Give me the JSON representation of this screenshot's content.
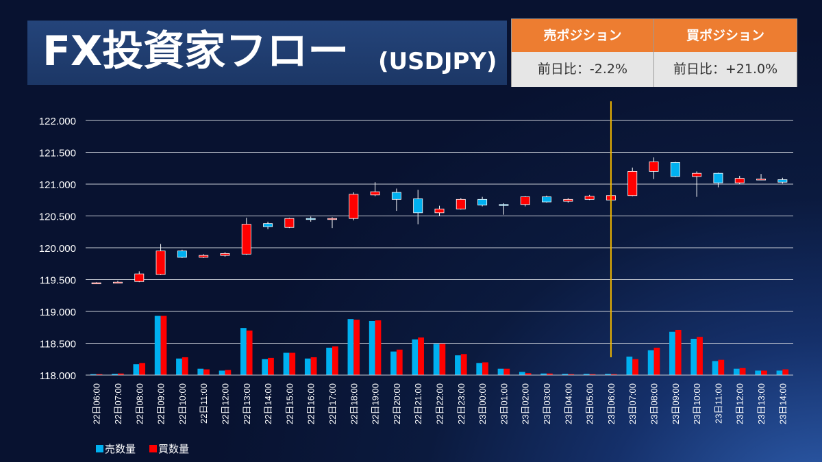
{
  "header": {
    "title": "FX投資家フロー",
    "subtitle": "(USDJPY)"
  },
  "positions": {
    "sell": {
      "label": "売ポジション",
      "change": "前日比：-2.2%"
    },
    "buy": {
      "label": "買ポジション",
      "change": "前日比：+21.0%"
    }
  },
  "colors": {
    "sell": "#00b0f0",
    "buy": "#ff0000",
    "header_orange": "#ed7d31",
    "marker": "#f2b800"
  },
  "chart_data": {
    "type": "candlestick+bar",
    "ylim": [
      118.0,
      122.0
    ],
    "yticks": [
      "118.000",
      "118.500",
      "119.000",
      "119.500",
      "120.000",
      "120.500",
      "121.000",
      "121.500",
      "122.000"
    ],
    "grid": true,
    "legend_placement": "bottom-left",
    "legend": [
      {
        "name": "売数量",
        "color": "#00b0f0"
      },
      {
        "name": "買数量",
        "color": "#ff0000"
      }
    ],
    "marker_category": "23日06:00",
    "categories": [
      "22日06:00",
      "22日07:00",
      "22日08:00",
      "22日09:00",
      "22日10:00",
      "22日11:00",
      "22日12:00",
      "22日13:00",
      "22日14:00",
      "22日15:00",
      "22日16:00",
      "22日17:00",
      "22日18:00",
      "22日19:00",
      "22日20:00",
      "22日21:00",
      "22日22:00",
      "22日23:00",
      "23日00:00",
      "23日01:00",
      "23日02:00",
      "23日03:00",
      "23日04:00",
      "23日05:00",
      "23日06:00",
      "23日07:00",
      "23日08:00",
      "23日09:00",
      "23日10:00",
      "23日11:00",
      "23日12:00",
      "23日13:00",
      "23日14:00"
    ],
    "candles": [
      {
        "open": 119.44,
        "high": 119.46,
        "low": 119.43,
        "close": 119.45
      },
      {
        "open": 119.45,
        "high": 119.48,
        "low": 119.44,
        "close": 119.46
      },
      {
        "open": 119.47,
        "high": 119.63,
        "low": 119.46,
        "close": 119.59
      },
      {
        "open": 119.58,
        "high": 120.06,
        "low": 119.57,
        "close": 119.95
      },
      {
        "open": 119.95,
        "high": 119.97,
        "low": 119.84,
        "close": 119.85
      },
      {
        "open": 119.85,
        "high": 119.9,
        "low": 119.84,
        "close": 119.88
      },
      {
        "open": 119.88,
        "high": 119.93,
        "low": 119.86,
        "close": 119.91
      },
      {
        "open": 119.9,
        "high": 120.47,
        "low": 119.89,
        "close": 120.37
      },
      {
        "open": 120.38,
        "high": 120.41,
        "low": 120.29,
        "close": 120.33
      },
      {
        "open": 120.32,
        "high": 120.47,
        "low": 120.31,
        "close": 120.46
      },
      {
        "open": 120.46,
        "high": 120.49,
        "low": 120.41,
        "close": 120.45
      },
      {
        "open": 120.45,
        "high": 120.48,
        "low": 120.31,
        "close": 120.46
      },
      {
        "open": 120.46,
        "high": 120.87,
        "low": 120.43,
        "close": 120.84
      },
      {
        "open": 120.83,
        "high": 121.03,
        "low": 120.81,
        "close": 120.88
      },
      {
        "open": 120.87,
        "high": 120.93,
        "low": 120.58,
        "close": 120.76
      },
      {
        "open": 120.77,
        "high": 120.91,
        "low": 120.37,
        "close": 120.55
      },
      {
        "open": 120.55,
        "high": 120.66,
        "low": 120.5,
        "close": 120.61
      },
      {
        "open": 120.61,
        "high": 120.78,
        "low": 120.6,
        "close": 120.76
      },
      {
        "open": 120.76,
        "high": 120.8,
        "low": 120.65,
        "close": 120.67
      },
      {
        "open": 120.68,
        "high": 120.7,
        "low": 120.52,
        "close": 120.67
      },
      {
        "open": 120.68,
        "high": 120.81,
        "low": 120.65,
        "close": 120.8
      },
      {
        "open": 120.8,
        "high": 120.82,
        "low": 120.71,
        "close": 120.72
      },
      {
        "open": 120.73,
        "high": 120.78,
        "low": 120.71,
        "close": 120.76
      },
      {
        "open": 120.76,
        "high": 120.83,
        "low": 120.75,
        "close": 120.81
      },
      {
        "open": 120.75,
        "high": 120.84,
        "low": 120.74,
        "close": 120.82
      },
      {
        "open": 120.82,
        "high": 121.26,
        "low": 120.81,
        "close": 121.2
      },
      {
        "open": 121.2,
        "high": 121.42,
        "low": 121.08,
        "close": 121.35
      },
      {
        "open": 121.34,
        "high": 121.35,
        "low": 121.11,
        "close": 121.12
      },
      {
        "open": 121.12,
        "high": 121.2,
        "low": 120.8,
        "close": 121.17
      },
      {
        "open": 121.17,
        "high": 121.18,
        "low": 120.95,
        "close": 121.02
      },
      {
        "open": 121.02,
        "high": 121.13,
        "low": 121.0,
        "close": 121.09
      },
      {
        "open": 121.08,
        "high": 121.16,
        "low": 121.06,
        "close": 121.08
      },
      {
        "open": 121.07,
        "high": 121.1,
        "low": 121.01,
        "close": 121.03
      }
    ],
    "series": [
      {
        "name": "売数量",
        "values": [
          0.015,
          0.02,
          0.17,
          0.93,
          0.26,
          0.1,
          0.07,
          0.74,
          0.25,
          0.35,
          0.26,
          0.43,
          0.88,
          0.85,
          0.37,
          0.56,
          0.49,
          0.31,
          0.19,
          0.1,
          0.05,
          0.025,
          0.02,
          0.02,
          0.02,
          0.29,
          0.39,
          0.68,
          0.57,
          0.22,
          0.1,
          0.07,
          0.07
        ]
      },
      {
        "name": "買数量",
        "values": [
          0.015,
          0.025,
          0.19,
          0.93,
          0.28,
          0.09,
          0.08,
          0.7,
          0.27,
          0.35,
          0.28,
          0.45,
          0.87,
          0.86,
          0.4,
          0.59,
          0.49,
          0.33,
          0.2,
          0.1,
          0.03,
          0.025,
          0.015,
          0.015,
          0.015,
          0.25,
          0.43,
          0.71,
          0.6,
          0.24,
          0.11,
          0.07,
          0.09
        ]
      }
    ]
  }
}
